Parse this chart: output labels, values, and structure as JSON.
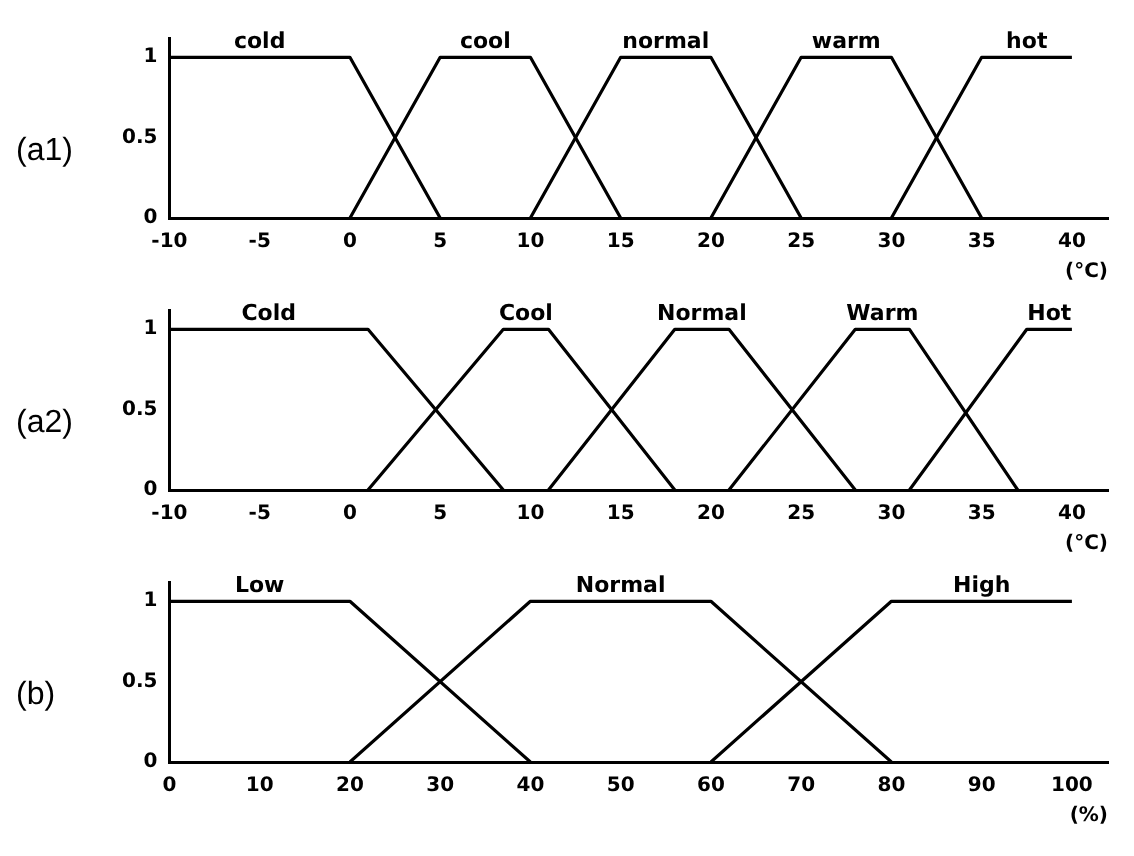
{
  "chart_data": [
    {
      "type": "line",
      "title": "(a1)",
      "xlabel": "(°C)",
      "xlim": [
        -10,
        42
      ],
      "xticks": [
        -10,
        -5,
        0,
        5,
        10,
        15,
        20,
        25,
        30,
        35,
        40
      ],
      "ylim": [
        0,
        1.12
      ],
      "yticks": [
        0,
        0.5,
        1
      ],
      "grid": false,
      "legend": false,
      "marker": "none",
      "line_style": "solid",
      "series": [
        {
          "name": "cold",
          "color": "#000000",
          "x": [
            -10,
            0,
            5
          ],
          "values": [
            1,
            1,
            0
          ]
        },
        {
          "name": "cool",
          "color": "#000000",
          "x": [
            0,
            5,
            10,
            15
          ],
          "values": [
            0,
            1,
            1,
            0
          ]
        },
        {
          "name": "normal",
          "color": "#000000",
          "x": [
            10,
            15,
            20,
            25
          ],
          "values": [
            0,
            1,
            1,
            0
          ]
        },
        {
          "name": "warm",
          "color": "#000000",
          "x": [
            20,
            25,
            30,
            35
          ],
          "values": [
            0,
            1,
            1,
            0
          ]
        },
        {
          "name": "hot",
          "color": "#000000",
          "x": [
            30,
            35,
            40
          ],
          "values": [
            0,
            1,
            1
          ]
        }
      ]
    },
    {
      "type": "line",
      "title": "(a2)",
      "xlabel": "(°C)",
      "xlim": [
        -10,
        42
      ],
      "xticks": [
        -10,
        -5,
        0,
        5,
        10,
        15,
        20,
        25,
        30,
        35,
        40
      ],
      "ylim": [
        0,
        1.12
      ],
      "yticks": [
        0,
        0.5,
        1
      ],
      "grid": false,
      "legend": false,
      "marker": "none",
      "line_style": "solid",
      "series": [
        {
          "name": "Cold",
          "color": "#000000",
          "x": [
            -10,
            1,
            8.5
          ],
          "values": [
            1,
            1,
            0
          ]
        },
        {
          "name": "Cool",
          "color": "#000000",
          "x": [
            1,
            8.5,
            11,
            18
          ],
          "values": [
            0,
            1,
            1,
            0
          ]
        },
        {
          "name": "Normal",
          "color": "#000000",
          "x": [
            11,
            18,
            21,
            28
          ],
          "values": [
            0,
            1,
            1,
            0
          ]
        },
        {
          "name": "Warm",
          "color": "#000000",
          "x": [
            21,
            28,
            31,
            37
          ],
          "values": [
            0,
            1,
            1,
            0
          ]
        },
        {
          "name": "Hot",
          "color": "#000000",
          "x": [
            31,
            37.5,
            40
          ],
          "values": [
            0,
            1,
            1
          ]
        }
      ]
    },
    {
      "type": "line",
      "title": "(b)",
      "xlabel": "(%)",
      "xlim": [
        0,
        104
      ],
      "xticks": [
        0,
        10,
        20,
        30,
        40,
        50,
        60,
        70,
        80,
        90,
        100
      ],
      "ylim": [
        0,
        1.12
      ],
      "yticks": [
        0,
        0.5,
        1
      ],
      "grid": false,
      "legend": false,
      "marker": "none",
      "line_style": "solid",
      "series": [
        {
          "name": "Low",
          "color": "#000000",
          "x": [
            0,
            20,
            40
          ],
          "values": [
            1,
            1,
            0
          ]
        },
        {
          "name": "Normal",
          "color": "#000000",
          "x": [
            20,
            40,
            60,
            80
          ],
          "values": [
            0,
            1,
            1,
            0
          ]
        },
        {
          "name": "High",
          "color": "#000000",
          "x": [
            60,
            80,
            100
          ],
          "values": [
            0,
            1,
            1
          ]
        }
      ]
    }
  ]
}
